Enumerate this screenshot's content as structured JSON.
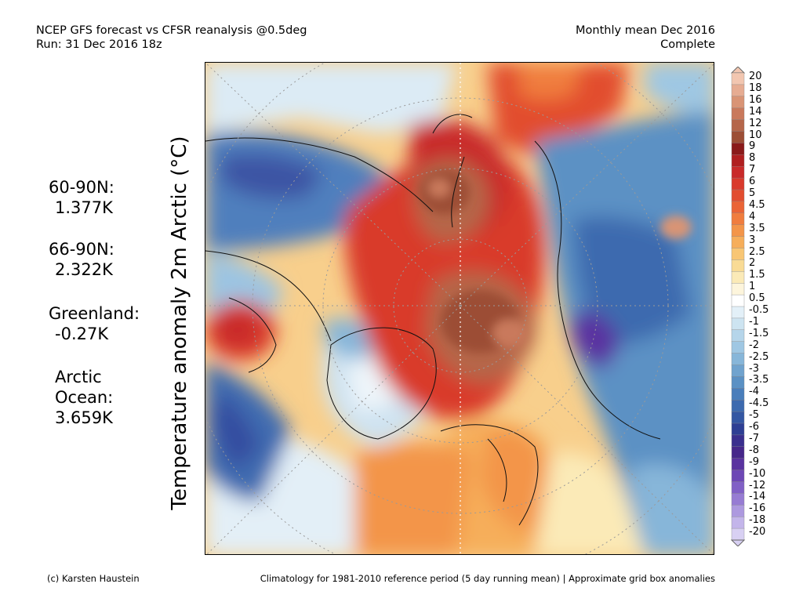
{
  "header": {
    "left_line1": "NCEP GFS forecast vs CFSR reanalysis @0.5deg",
    "left_line2": "Run: 31 Dec 2016 18z",
    "right_line1": "Monthly mean Dec 2016",
    "right_line2": "Complete"
  },
  "y_axis_label": "Temperature anomaly 2m Arctic (°C)",
  "stats": [
    {
      "label": "60-90N:",
      "value": "1.377K"
    },
    {
      "label": "66-90N:",
      "value": "2.322K"
    },
    {
      "label": "Greenland:",
      "value": "-0.27K"
    },
    {
      "label": "Arctic Ocean:",
      "label_line1": "Arctic",
      "label_line2": "Ocean:",
      "value": "3.659K"
    }
  ],
  "colorbar": {
    "labels": [
      "20",
      "18",
      "16",
      "14",
      "12",
      "10",
      "9",
      "8",
      "7",
      "6",
      "5",
      "4.5",
      "4",
      "3.5",
      "3",
      "2.5",
      "2",
      "1.5",
      "1",
      "0.5",
      "-0.5",
      "-1",
      "-1.5",
      "-2",
      "-2.5",
      "-3",
      "-3.5",
      "-4",
      "-4.5",
      "-5",
      "-6",
      "-7",
      "-8",
      "-9",
      "-10",
      "-12",
      "-14",
      "-16",
      "-18",
      "-20"
    ],
    "colors": [
      "#f2c6b0",
      "#e6ac92",
      "#d99475",
      "#c9795c",
      "#b5664a",
      "#9c4e35",
      "#8a1a1a",
      "#b01f20",
      "#c92a2a",
      "#d93a2c",
      "#e24d2f",
      "#ea6436",
      "#f07d3e",
      "#f39549",
      "#f6ae5a",
      "#f8c674",
      "#f9db95",
      "#fbeab7",
      "#fdf5dc",
      "#ffffff",
      "#e3f0f8",
      "#cde4f1",
      "#b5d5ea",
      "#9fc7e3",
      "#87b6d9",
      "#70a3ce",
      "#5b91c4",
      "#4a7ebb",
      "#3d6aaf",
      "#3457a3",
      "#2e3f94",
      "#3a2f8e",
      "#46278a",
      "#5a33a0",
      "#6d47b5",
      "#8160c6",
      "#977cd3",
      "#ad99df",
      "#c3b5ea",
      "#d8d0f3"
    ]
  },
  "map": {
    "name": "arctic-temperature-anomaly-map"
  },
  "footer": {
    "left": "(c) Karsten Haustein",
    "right": "Climatology for 1981-2010 reference period (5 day running mean) | Approximate grid box anomalies"
  }
}
